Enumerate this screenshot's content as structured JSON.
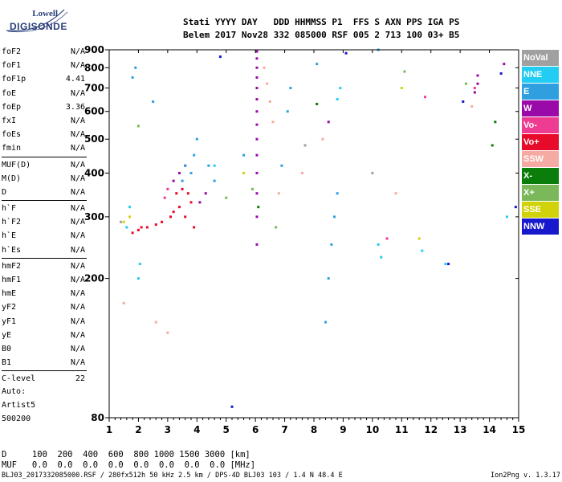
{
  "logo": {
    "line1": "Lowell",
    "line2": "DIGISONDE"
  },
  "header": {
    "labels": "Stati YYYY DAY   DDD HHMMSS P1  FFS S AXN PPS IGA PS",
    "values": "Belem 2017 Nov28 332 085000 RSF 005 2 713 100 03+ B5"
  },
  "params_groups": [
    [
      [
        "foF2",
        "N/A"
      ],
      [
        "foF1",
        "N/A"
      ],
      [
        "foF1p",
        "4.41"
      ],
      [
        "foE",
        "N/A"
      ],
      [
        "foEp",
        "3.36"
      ],
      [
        "fxI",
        "N/A"
      ],
      [
        "foEs",
        "N/A"
      ],
      [
        "fmin",
        "N/A"
      ]
    ],
    [
      [
        "MUF(D)",
        "N/A"
      ],
      [
        "M(D)",
        "N/A"
      ],
      [
        "D",
        "N/A"
      ]
    ],
    [
      [
        "h`F",
        "N/A"
      ],
      [
        "h`F2",
        "N/A"
      ],
      [
        "h`E",
        "N/A"
      ],
      [
        "h`Es",
        "N/A"
      ]
    ],
    [
      [
        "hmF2",
        "N/A"
      ],
      [
        "hmF1",
        "N/A"
      ],
      [
        "hmE",
        "N/A"
      ],
      [
        "yF2",
        "N/A"
      ],
      [
        "yF1",
        "N/A"
      ],
      [
        "yE",
        "N/A"
      ],
      [
        "B0",
        "N/A"
      ],
      [
        "B1",
        "N/A"
      ]
    ],
    [
      [
        "C-level",
        "22"
      ]
    ]
  ],
  "auto": [
    "Auto:",
    "Artist5",
    "500200"
  ],
  "legend": [
    {
      "name": "NoVal",
      "color": "#a0a0a0"
    },
    {
      "name": "NNE",
      "color": "#22ccf2"
    },
    {
      "name": "E",
      "color": "#2f9fe0"
    },
    {
      "name": "W",
      "color": "#9a0aa8"
    },
    {
      "name": "Vo-",
      "color": "#ee3c92"
    },
    {
      "name": "Vo+",
      "color": "#e80a2a"
    },
    {
      "name": "SSW",
      "color": "#f5aaa4"
    },
    {
      "name": "X-",
      "color": "#0b7d0b"
    },
    {
      "name": "X+",
      "color": "#7ab85a"
    },
    {
      "name": "SSE",
      "color": "#d2d20a"
    },
    {
      "name": "NNW",
      "color": "#1818cc"
    }
  ],
  "bottom": {
    "d_row": "D     100  200  400  600  800 1000 1500 3000 [km]",
    "muf_row": "MUF   0.0  0.0  0.0  0.0  0.0  0.0  0.0  0.0 [MHz]"
  },
  "footer": {
    "left": "BLJ03_2017332085000.RSF / 280fx512h 50 kHz 2.5 km / DPS-4D BLJ03 103 / 1.4 N 48.4 E",
    "right": "Ion2Png v. 1.3.17"
  },
  "chart_data": {
    "type": "scatter",
    "title": "",
    "xlabel": "",
    "ylabel": "",
    "xlim": [
      1,
      15
    ],
    "ylim": [
      80,
      900
    ],
    "x_ticks": [
      1,
      2,
      3,
      4,
      5,
      6,
      7,
      8,
      9,
      10,
      11,
      12,
      13,
      14,
      15
    ],
    "y_ticks": [
      80,
      200,
      300,
      400,
      500,
      600,
      700,
      800,
      900
    ],
    "y_scale": "log",
    "series": [
      {
        "name": "Vo+",
        "color": "#e80a2a",
        "points": [
          [
            1.8,
            270
          ],
          [
            2.0,
            275
          ],
          [
            2.3,
            280
          ],
          [
            2.6,
            285
          ],
          [
            2.8,
            290
          ],
          [
            3.1,
            300
          ],
          [
            3.2,
            310
          ],
          [
            3.4,
            320
          ],
          [
            3.6,
            300
          ],
          [
            3.8,
            330
          ],
          [
            3.7,
            350
          ],
          [
            3.9,
            280
          ],
          [
            3.3,
            350
          ],
          [
            3.5,
            360
          ],
          [
            2.1,
            280
          ]
        ]
      },
      {
        "name": "W",
        "color": "#9a0aa8",
        "points": [
          [
            6.05,
            250
          ],
          [
            6.05,
            300
          ],
          [
            6.05,
            350
          ],
          [
            6.05,
            400
          ],
          [
            6.05,
            450
          ],
          [
            6.05,
            500
          ],
          [
            6.05,
            550
          ],
          [
            6.05,
            600
          ],
          [
            6.05,
            650
          ],
          [
            6.05,
            700
          ],
          [
            6.05,
            750
          ],
          [
            6.05,
            800
          ],
          [
            6.05,
            850
          ],
          [
            6.05,
            890
          ],
          [
            3.2,
            380
          ],
          [
            3.4,
            400
          ],
          [
            3.6,
            420
          ],
          [
            13.6,
            760
          ],
          [
            13.6,
            720
          ],
          [
            13.5,
            680
          ],
          [
            14.5,
            820
          ],
          [
            8.5,
            560
          ],
          [
            4.1,
            330
          ],
          [
            4.3,
            350
          ]
        ]
      },
      {
        "name": "E",
        "color": "#2f9fe0",
        "points": [
          [
            3.8,
            400
          ],
          [
            3.9,
            450
          ],
          [
            4.0,
            500
          ],
          [
            3.6,
            420
          ],
          [
            3.5,
            380
          ],
          [
            4.4,
            420
          ],
          [
            4.6,
            380
          ],
          [
            8.8,
            350
          ],
          [
            8.7,
            300
          ],
          [
            8.6,
            250
          ],
          [
            8.5,
            200
          ],
          [
            8.4,
            150
          ],
          [
            7.1,
            600
          ],
          [
            7.2,
            700
          ],
          [
            8.1,
            820
          ],
          [
            6.9,
            420
          ],
          [
            5.6,
            450
          ],
          [
            1.8,
            750
          ],
          [
            1.9,
            800
          ],
          [
            2.5,
            640
          ],
          [
            10.2,
            900
          ]
        ]
      },
      {
        "name": "NNE",
        "color": "#22ccf2",
        "points": [
          [
            2.0,
            200
          ],
          [
            2.05,
            220
          ],
          [
            1.6,
            280
          ],
          [
            1.7,
            320
          ],
          [
            10.2,
            250
          ],
          [
            10.3,
            230
          ],
          [
            8.8,
            650
          ],
          [
            8.9,
            700
          ],
          [
            11.7,
            240
          ],
          [
            12.5,
            220
          ],
          [
            4.6,
            420
          ],
          [
            14.6,
            300
          ]
        ]
      },
      {
        "name": "SSW",
        "color": "#f5aaa4",
        "points": [
          [
            6.3,
            800
          ],
          [
            6.4,
            720
          ],
          [
            6.5,
            640
          ],
          [
            6.6,
            560
          ],
          [
            7.6,
            400
          ],
          [
            8.3,
            500
          ],
          [
            10.8,
            350
          ],
          [
            13.4,
            620
          ],
          [
            6.8,
            350
          ],
          [
            1.5,
            170
          ],
          [
            2.6,
            150
          ],
          [
            3.0,
            140
          ]
        ]
      },
      {
        "name": "X+",
        "color": "#7ab85a",
        "points": [
          [
            2.0,
            545
          ],
          [
            5.9,
            360
          ],
          [
            5.0,
            340
          ],
          [
            6.7,
            280
          ],
          [
            11.1,
            780
          ],
          [
            13.2,
            720
          ]
        ]
      },
      {
        "name": "X-",
        "color": "#0b7d0b",
        "points": [
          [
            8.1,
            630
          ],
          [
            14.1,
            480
          ],
          [
            14.2,
            560
          ],
          [
            6.1,
            320
          ]
        ]
      },
      {
        "name": "SSE",
        "color": "#d2d20a",
        "points": [
          [
            11.0,
            700
          ],
          [
            11.6,
            260
          ],
          [
            1.5,
            290
          ],
          [
            5.6,
            400
          ],
          [
            1.7,
            300
          ]
        ]
      },
      {
        "name": "NNW",
        "color": "#1818cc",
        "points": [
          [
            12.6,
            220
          ],
          [
            14.9,
            320
          ],
          [
            14.4,
            770
          ],
          [
            13.1,
            640
          ],
          [
            4.8,
            860
          ],
          [
            9.1,
            880
          ],
          [
            5.2,
            86
          ]
        ]
      },
      {
        "name": "Vo-",
        "color": "#ee3c92",
        "points": [
          [
            13.5,
            700
          ],
          [
            11.8,
            660
          ],
          [
            10.5,
            260
          ],
          [
            2.9,
            340
          ],
          [
            3.0,
            360
          ]
        ]
      },
      {
        "name": "NoVal",
        "color": "#a0a0a0",
        "points": [
          [
            1.4,
            290
          ],
          [
            10.0,
            400
          ],
          [
            7.7,
            480
          ]
        ]
      }
    ]
  }
}
